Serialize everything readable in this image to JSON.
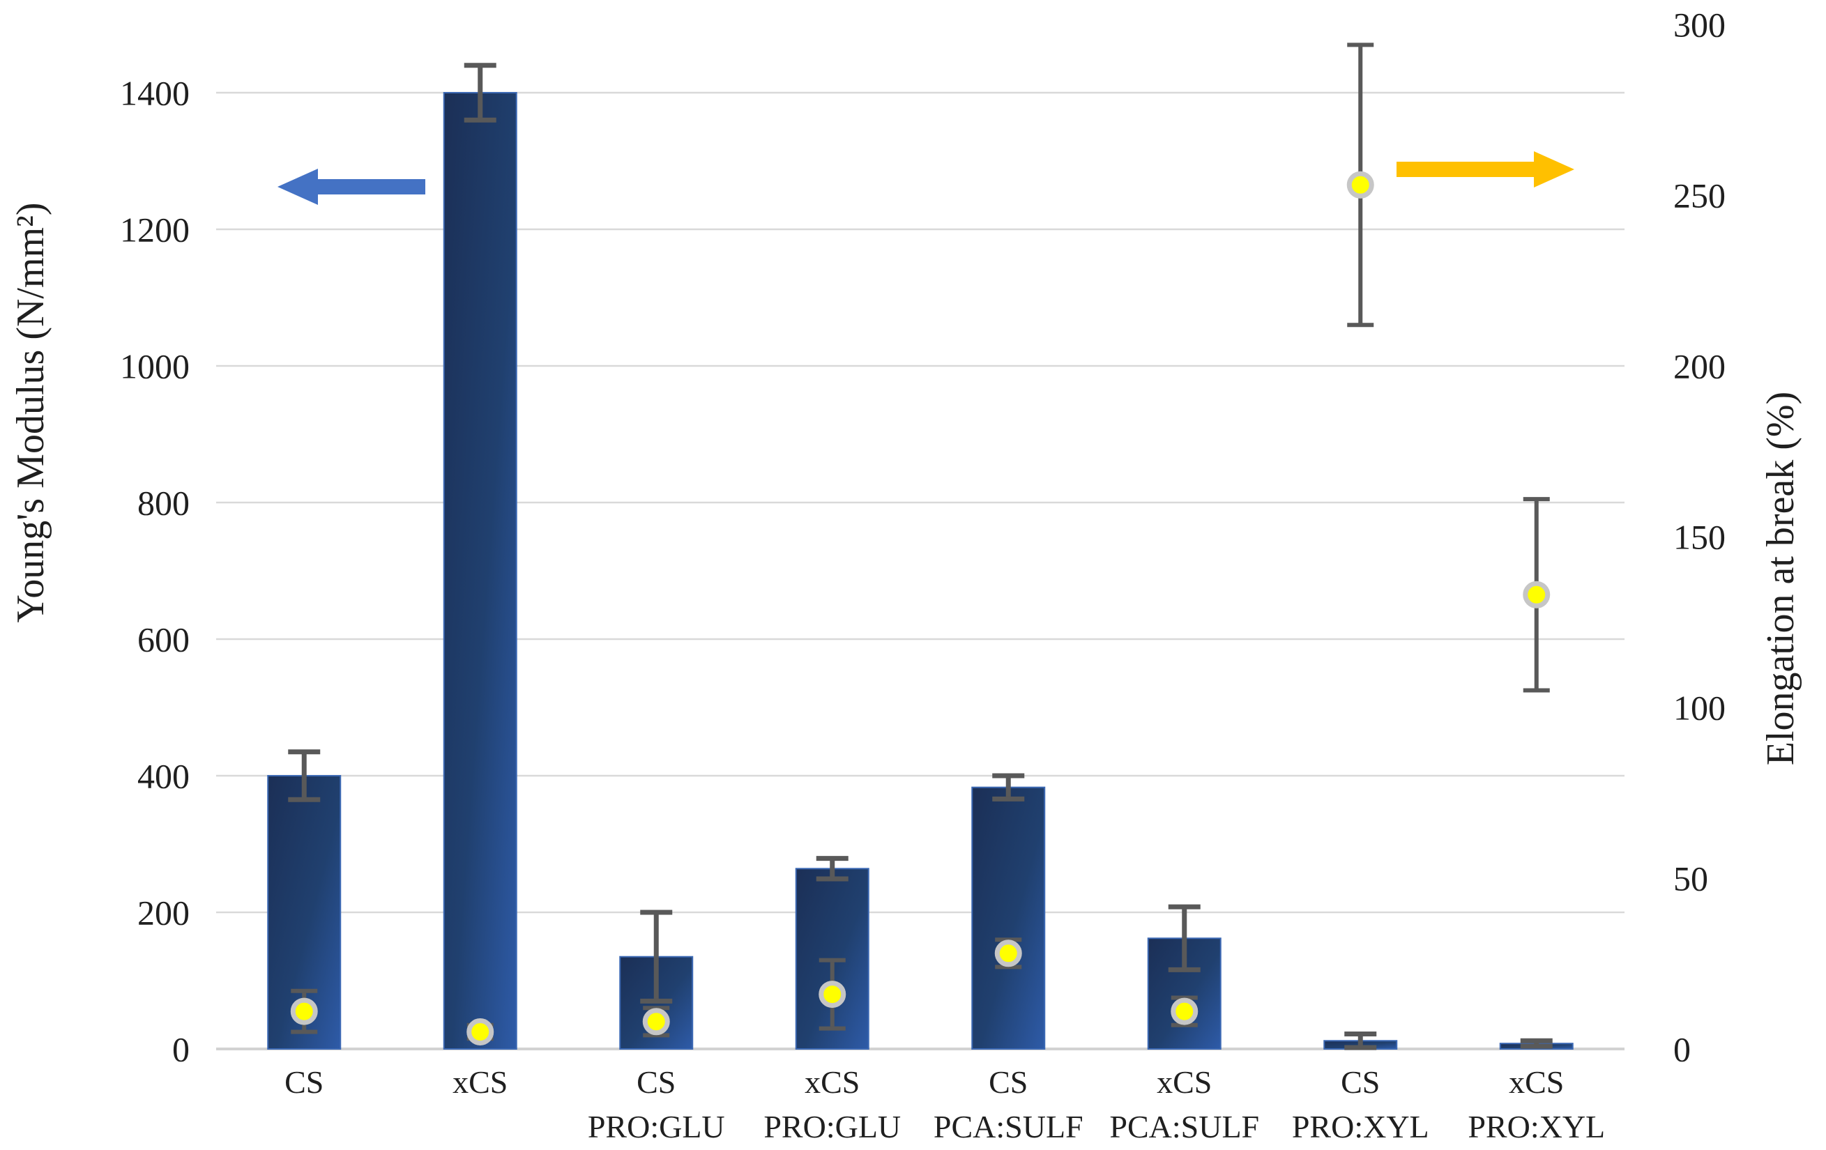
{
  "chart_data": {
    "type": "bar",
    "subtype": "dual-axis-combo",
    "title": "",
    "categories": [
      {
        "line1": "CS",
        "line2": ""
      },
      {
        "line1": "xCS",
        "line2": ""
      },
      {
        "line1": "CS",
        "line2": "PRO:GLU"
      },
      {
        "line1": "xCS",
        "line2": "PRO:GLU"
      },
      {
        "line1": "CS",
        "line2": "PCA:SULF"
      },
      {
        "line1": "xCS",
        "line2": "PCA:SULF"
      },
      {
        "line1": "CS",
        "line2": "PRO:XYL"
      },
      {
        "line1": "xCS",
        "line2": "PRO:XYL"
      }
    ],
    "series": [
      {
        "name": "Young's Modulus",
        "type": "bar",
        "axis": "left",
        "values": [
          400,
          1400,
          135,
          264,
          383,
          162,
          12,
          8
        ],
        "errors": [
          35,
          40,
          65,
          15,
          17,
          46,
          10,
          4
        ],
        "bar_color_dark": "#1B2F56",
        "bar_color_light": "#2E5BA8",
        "bar_border_color": "#3C69B4"
      },
      {
        "name": "Elongation at break",
        "type": "scatter",
        "axis": "right",
        "values": [
          11,
          5,
          8,
          16,
          28,
          11,
          253,
          133
        ],
        "errors": [
          6,
          2,
          4,
          10,
          4,
          4,
          41,
          28
        ],
        "marker_fill": "#FFFF00",
        "marker_ring": "#C6C6C6"
      }
    ],
    "left_axis": {
      "label": "Young's Modulus (N/mm²)",
      "ticks": [
        0,
        200,
        400,
        600,
        800,
        1000,
        1200,
        1400
      ],
      "range": [
        0,
        1500
      ]
    },
    "right_axis": {
      "label": "Elongation at break (%)",
      "ticks": [
        0,
        50,
        100,
        150,
        200,
        250,
        300
      ],
      "range": [
        0,
        300
      ]
    },
    "grid": {
      "visible": true,
      "color": "#D9D9D9",
      "baseline_color": "#D2D2D2"
    },
    "error_bar_color": "#595959",
    "annotations": [
      {
        "name": "left-axis-arrow",
        "shape": "arrow-left",
        "color": "#4472C4"
      },
      {
        "name": "right-axis-arrow",
        "shape": "arrow-right",
        "color": "#FFC000"
      }
    ]
  }
}
